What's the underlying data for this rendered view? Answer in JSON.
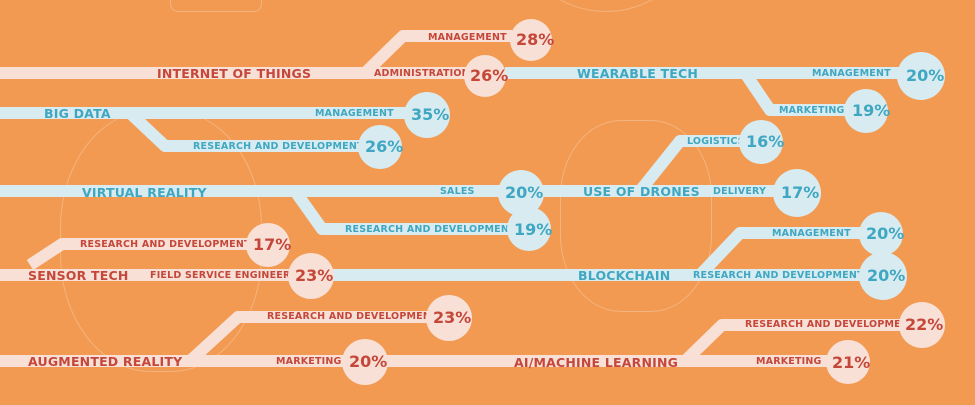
{
  "colors": {
    "background": "#F29A52",
    "teal_line": "#D7EBF1",
    "red_line": "#F9E0D6",
    "teal_text": "#3FA7C1",
    "red_text": "#C4473A"
  },
  "technologies": [
    {
      "name": "INTERNET OF THINGS",
      "roles": [
        {
          "role": "MANAGEMENT",
          "percent": "28%"
        },
        {
          "role": "ADMINISTRATION",
          "percent": "26%"
        }
      ]
    },
    {
      "name": "WEARABLE TECH",
      "roles": [
        {
          "role": "MANAGEMENT",
          "percent": "20%"
        },
        {
          "role": "MARKETING",
          "percent": "19%"
        }
      ]
    },
    {
      "name": "BIG DATA",
      "roles": [
        {
          "role": "MANAGEMENT",
          "percent": "35%"
        },
        {
          "role": "RESEARCH AND DEVELOPMENT",
          "percent": "26%"
        }
      ]
    },
    {
      "name": "USE OF DRONES",
      "roles": [
        {
          "role": "LOGISTICS",
          "percent": "16%"
        },
        {
          "role": "DELIVERY",
          "percent": "17%"
        }
      ]
    },
    {
      "name": "VIRTUAL REALITY",
      "roles": [
        {
          "role": "SALES",
          "percent": "20%"
        },
        {
          "role": "RESEARCH AND DEVELOPMENT",
          "percent": "19%"
        }
      ]
    },
    {
      "name": "SENSOR TECH",
      "roles": [
        {
          "role": "RESEARCH AND DEVELOPMENT",
          "percent": "17%"
        },
        {
          "role": "FIELD SERVICE ENGINEERS",
          "percent": "23%"
        }
      ]
    },
    {
      "name": "BLOCKCHAIN",
      "roles": [
        {
          "role": "MANAGEMENT",
          "percent": "20%"
        },
        {
          "role": "RESEARCH AND DEVELOPMENT",
          "percent": "20%"
        }
      ]
    },
    {
      "name": "AUGMENTED REALITY",
      "roles": [
        {
          "role": "RESEARCH AND DEVELOPMENT",
          "percent": "23%"
        },
        {
          "role": "MARKETING",
          "percent": "20%"
        }
      ]
    },
    {
      "name": "AI/MACHINE LEARNING",
      "roles": [
        {
          "role": "RESEARCH AND DEVELOPMENT",
          "percent": "22%"
        },
        {
          "role": "MARKETING",
          "percent": "21%"
        }
      ]
    }
  ]
}
